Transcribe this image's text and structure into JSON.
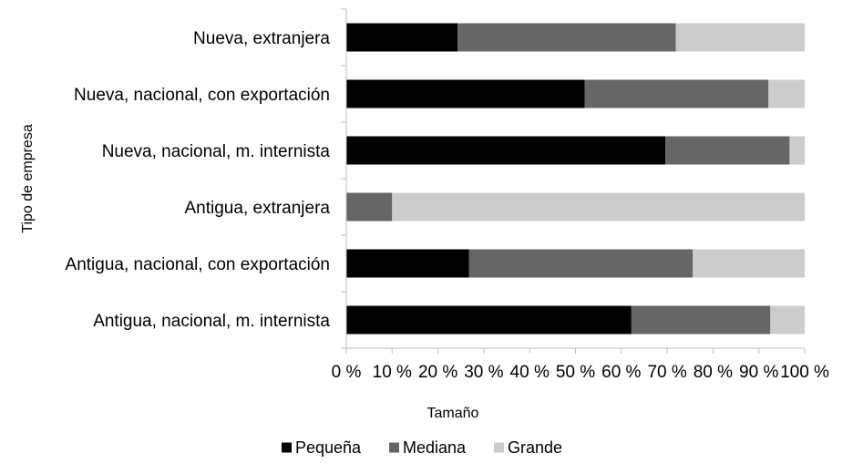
{
  "chart_data": {
    "type": "bar",
    "orientation": "horizontal",
    "stacked": "percent",
    "categories": [
      "Nueva, extranjera",
      "Nueva, nacional, con exportación",
      "Nueva, nacional, m. internista",
      "Antigua, extranjera",
      "Antigua, nacional, con exportación",
      "Antigua, nacional, m. internista"
    ],
    "series": [
      {
        "name": "Pequeña",
        "color": "#000000",
        "values": [
          24.3,
          52.0,
          69.6,
          0.0,
          26.8,
          62.2
        ]
      },
      {
        "name": "Mediana",
        "color": "#666666",
        "values": [
          47.6,
          40.1,
          27.1,
          10.0,
          48.8,
          30.3
        ]
      },
      {
        "name": "Grande",
        "color": "#cccccc",
        "values": [
          28.1,
          7.9,
          3.3,
          90.0,
          24.4,
          7.5
        ]
      }
    ],
    "xlabel": "Tamaño",
    "ylabel": "Tipo de empresa",
    "xlim": [
      0,
      100
    ],
    "xticks": [
      "0 %",
      "10 %",
      "20 %",
      "30 %",
      "40 %",
      "50 %",
      "60 %",
      "70 %",
      "80 %",
      "90 %",
      "100 %"
    ],
    "legend_position": "bottom",
    "grid": false
  }
}
